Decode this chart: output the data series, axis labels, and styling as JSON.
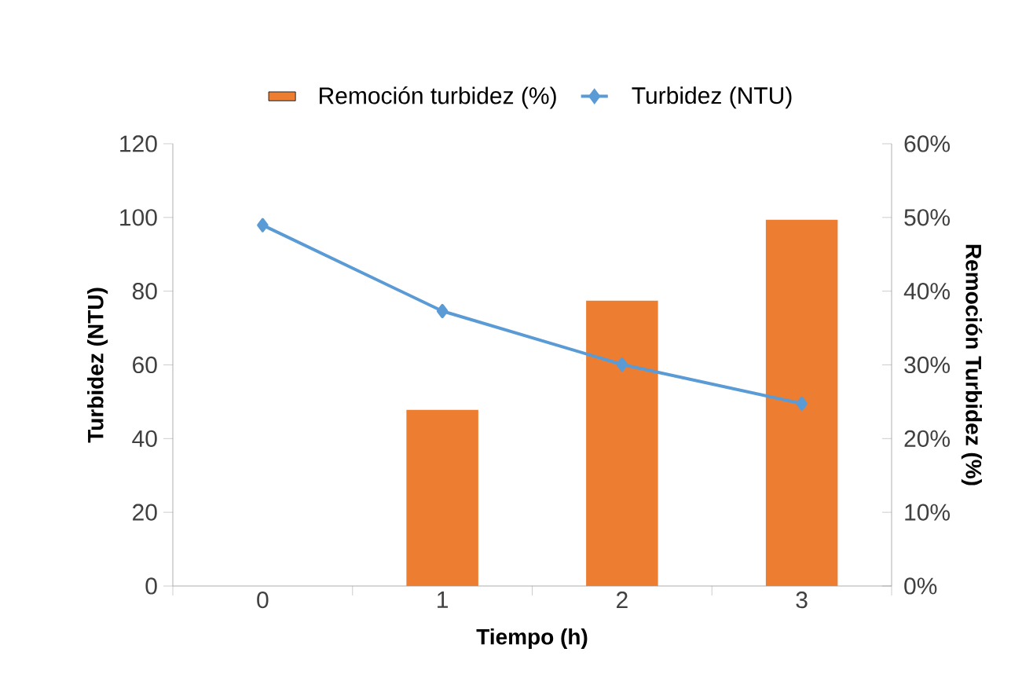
{
  "chart_data": {
    "type": "bar",
    "xlabel": "Tiempo (h)",
    "ylabel": "Turbidez (NTU)",
    "y2label": "Remoción Turbidez (%)",
    "categories": [
      "0",
      "1",
      "2",
      "3"
    ],
    "series": [
      {
        "name": "Remoción turbidez (%)",
        "axis": "y2",
        "color": "#ed7d31",
        "values": [
          0,
          23.9,
          38.7,
          49.7
        ]
      },
      {
        "name": "Turbidez (NTU)",
        "type": "line",
        "color": "#5b9bd5",
        "values": [
          97.9,
          74.6,
          60.1,
          49.5
        ]
      }
    ],
    "ylim": [
      0,
      120
    ],
    "yticks": [
      0,
      20,
      40,
      60,
      80,
      100,
      120
    ],
    "y2lim": [
      0,
      60
    ],
    "y2ticks": [
      {
        "value": 0,
        "label": "0%"
      },
      {
        "value": 10,
        "label": "10%"
      },
      {
        "value": 20,
        "label": "20%"
      },
      {
        "value": 30,
        "label": "30%"
      },
      {
        "value": 40,
        "label": "40%"
      },
      {
        "value": 50,
        "label": "50%"
      },
      {
        "value": 60,
        "label": "60%"
      }
    ],
    "legend": "top",
    "marker": "diamond"
  }
}
